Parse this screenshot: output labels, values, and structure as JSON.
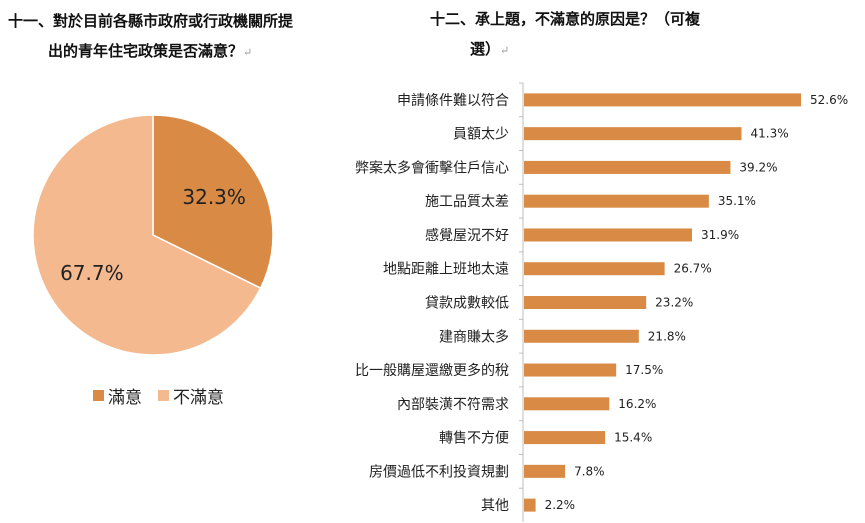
{
  "questions": {
    "q11": {
      "line1": "十一、對於目前各縣市政府或行政機關所提",
      "line2": "出的青年住宅政策是否滿意？",
      "mark": "↵"
    },
    "q12": {
      "line1": "十二、承上題，不滿意的原因是？（可複",
      "line2": "選）",
      "mark": "↵"
    }
  },
  "colors": {
    "satisfied": "#d98a44",
    "unsatisfied": "#f4b98f",
    "bar": "#d98a44",
    "axis": "#bfbfbf"
  },
  "chart_data": [
    {
      "type": "pie",
      "categories": [
        "滿意",
        "不滿意"
      ],
      "values": [
        32.3,
        67.7
      ],
      "labels": [
        "32.3%",
        "67.7%"
      ],
      "legend": [
        "滿意",
        "不滿意"
      ],
      "legend_position": "bottom"
    },
    {
      "type": "bar",
      "orientation": "horizontal",
      "categories": [
        "申請條件難以符合",
        "員額太少",
        "弊案太多會衝擊住戶信心",
        "施工品質太差",
        "感覺屋況不好",
        "地點距離上班地太遠",
        "貸款成數較低",
        "建商賺太多",
        "比一般購屋還繳更多的稅",
        "內部裝潢不符需求",
        "轉售不方便",
        "房價過低不利投資規劃",
        "其他"
      ],
      "values": [
        52.6,
        41.3,
        39.2,
        35.1,
        31.9,
        26.7,
        23.2,
        21.8,
        17.5,
        16.2,
        15.4,
        7.8,
        2.2
      ],
      "labels": [
        "52.6%",
        "41.3%",
        "39.2%",
        "35.1%",
        "31.9%",
        "26.7%",
        "23.2%",
        "21.8%",
        "17.5%",
        "16.2%",
        "15.4%",
        "7.8%",
        "2.2%"
      ],
      "unit": "%"
    }
  ]
}
